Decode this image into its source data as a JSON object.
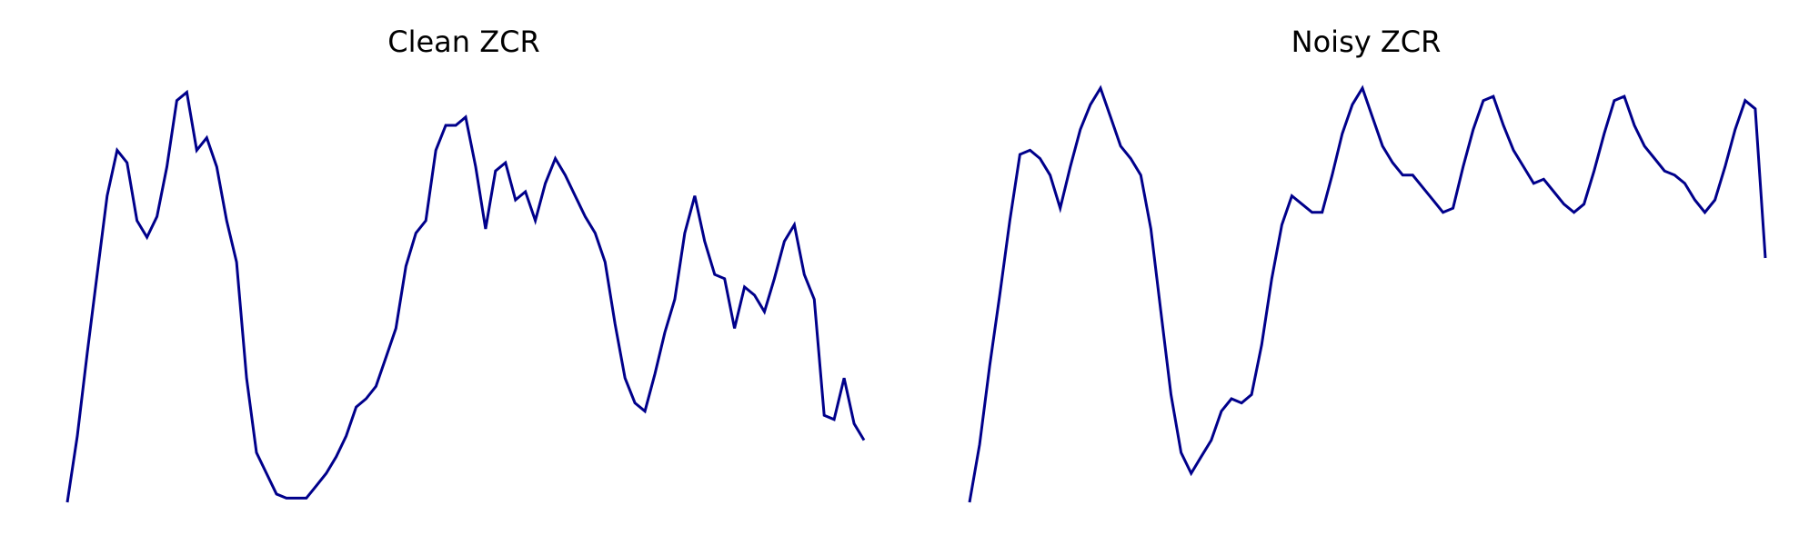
{
  "line_color": "#00008b",
  "chart_data": [
    {
      "type": "line",
      "title": "Clean ZCR",
      "axes_visible": false,
      "grid": false,
      "ylim": [
        0,
        1
      ],
      "series": [
        {
          "values": [
            0.0,
            0.16,
            0.36,
            0.55,
            0.74,
            0.85,
            0.82,
            0.68,
            0.64,
            0.69,
            0.81,
            0.97,
            0.99,
            0.85,
            0.88,
            0.81,
            0.68,
            0.58,
            0.3,
            0.12,
            0.07,
            0.02,
            0.01,
            0.01,
            0.01,
            0.04,
            0.07,
            0.11,
            0.16,
            0.23,
            0.25,
            0.28,
            0.35,
            0.42,
            0.57,
            0.65,
            0.68,
            0.85,
            0.91,
            0.91,
            0.93,
            0.81,
            0.66,
            0.8,
            0.82,
            0.73,
            0.75,
            0.68,
            0.77,
            0.83,
            0.79,
            0.74,
            0.69,
            0.65,
            0.58,
            0.43,
            0.3,
            0.24,
            0.22,
            0.31,
            0.41,
            0.49,
            0.65,
            0.74,
            0.63,
            0.55,
            0.54,
            0.42,
            0.52,
            0.5,
            0.46,
            0.54,
            0.63,
            0.67,
            0.55,
            0.49,
            0.21,
            0.2,
            0.3,
            0.19,
            0.15
          ]
        }
      ]
    },
    {
      "type": "line",
      "title": "Noisy ZCR",
      "axes_visible": false,
      "grid": false,
      "ylim": [
        0,
        1
      ],
      "series": [
        {
          "values": [
            0.0,
            0.14,
            0.33,
            0.5,
            0.68,
            0.84,
            0.85,
            0.83,
            0.79,
            0.71,
            0.81,
            0.9,
            0.96,
            1.0,
            0.93,
            0.86,
            0.83,
            0.79,
            0.66,
            0.46,
            0.26,
            0.12,
            0.07,
            0.11,
            0.15,
            0.22,
            0.25,
            0.24,
            0.26,
            0.38,
            0.54,
            0.67,
            0.74,
            0.72,
            0.7,
            0.7,
            0.79,
            0.89,
            0.96,
            1.0,
            0.93,
            0.86,
            0.82,
            0.79,
            0.79,
            0.76,
            0.73,
            0.7,
            0.71,
            0.81,
            0.9,
            0.97,
            0.98,
            0.91,
            0.85,
            0.81,
            0.77,
            0.78,
            0.75,
            0.72,
            0.7,
            0.72,
            0.8,
            0.89,
            0.97,
            0.98,
            0.91,
            0.86,
            0.83,
            0.8,
            0.79,
            0.77,
            0.73,
            0.7,
            0.73,
            0.81,
            0.9,
            0.97,
            0.95,
            0.59
          ]
        }
      ]
    }
  ]
}
